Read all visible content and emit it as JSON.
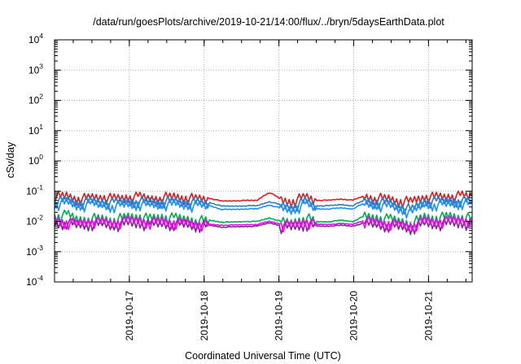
{
  "chart_data": {
    "type": "line",
    "title": "/data/run/goesPlots/archive/2019-10-21/14:00/flux/../bryn/5daysEarthData.plot",
    "xlabel": "Coordinated Universal Time (UTC)",
    "ylabel": "cSv/day",
    "y_scale": "log",
    "ylim": [
      0.0001,
      10000
    ],
    "y_ticks": [
      {
        "base": "10",
        "exp": "4",
        "value": 10000
      },
      {
        "base": "10",
        "exp": "3",
        "value": 1000
      },
      {
        "base": "10",
        "exp": "2",
        "value": 100
      },
      {
        "base": "10",
        "exp": "1",
        "value": 10
      },
      {
        "base": "10",
        "exp": "0",
        "value": 1
      },
      {
        "base": "10",
        "exp": "-1",
        "value": 0.1
      },
      {
        "base": "10",
        "exp": "-2",
        "value": 0.01
      },
      {
        "base": "10",
        "exp": "-3",
        "value": 0.001
      },
      {
        "base": "10",
        "exp": "-4",
        "value": 0.0001
      }
    ],
    "xlim": [
      "2019-10-16 00:00",
      "2019-10-21 14:00"
    ],
    "x_ticks": [
      "2019-10-17",
      "2019-10-18",
      "2019-10-19",
      "2019-10-20",
      "2019-10-21"
    ],
    "grid": true,
    "series": [
      {
        "color": "#e31a1c",
        "values": [
          0.07,
          0.075,
          0.06,
          0.065,
          0.07,
          0.06,
          0.065,
          0.07,
          0.06,
          0.068,
          0.07,
          0.065,
          0.06,
          0.058,
          0.047,
          0.048,
          0.049,
          0.05,
          0.09,
          0.052,
          0.05,
          0.07,
          0.05,
          0.05,
          0.055,
          0.05,
          0.07,
          0.065,
          0.06,
          0.05,
          0.05,
          0.07,
          0.068,
          0.07,
          0.075,
          0.07
        ]
      },
      {
        "color": "#2c7fb8",
        "values": [
          0.05,
          0.055,
          0.045,
          0.05,
          0.048,
          0.045,
          0.05,
          0.052,
          0.047,
          0.05,
          0.05,
          0.048,
          0.045,
          0.042,
          0.032,
          0.032,
          0.033,
          0.033,
          0.045,
          0.035,
          0.034,
          0.05,
          0.033,
          0.033,
          0.036,
          0.033,
          0.05,
          0.048,
          0.045,
          0.035,
          0.026,
          0.05,
          0.05,
          0.052,
          0.055,
          0.05
        ]
      },
      {
        "color": "#1e90ff",
        "values": [
          0.04,
          0.045,
          0.035,
          0.04,
          0.038,
          0.035,
          0.04,
          0.042,
          0.037,
          0.04,
          0.04,
          0.038,
          0.035,
          0.033,
          0.025,
          0.025,
          0.026,
          0.026,
          0.035,
          0.027,
          0.026,
          0.04,
          0.026,
          0.026,
          0.028,
          0.026,
          0.04,
          0.038,
          0.035,
          0.027,
          0.02,
          0.04,
          0.04,
          0.042,
          0.045,
          0.04
        ]
      },
      {
        "color": "#00b050",
        "values": [
          0.015,
          0.018,
          0.012,
          0.014,
          0.013,
          0.012,
          0.015,
          0.016,
          0.013,
          0.015,
          0.014,
          0.013,
          0.012,
          0.011,
          0.0095,
          0.0095,
          0.01,
          0.01,
          0.013,
          0.01,
          0.0098,
          0.015,
          0.0098,
          0.0098,
          0.011,
          0.0099,
          0.015,
          0.014,
          0.013,
          0.011,
          0.0095,
          0.015,
          0.014,
          0.016,
          0.015,
          0.014
        ]
      },
      {
        "color": "#7b2d8e",
        "values": [
          0.009,
          0.01,
          0.008,
          0.009,
          0.0085,
          0.008,
          0.009,
          0.0095,
          0.0085,
          0.009,
          0.009,
          0.0085,
          0.008,
          0.0075,
          0.0065,
          0.0066,
          0.0068,
          0.007,
          0.009,
          0.0072,
          0.007,
          0.009,
          0.007,
          0.007,
          0.0075,
          0.007,
          0.009,
          0.0085,
          0.008,
          0.0072,
          0.0066,
          0.009,
          0.0088,
          0.0092,
          0.0095,
          0.009
        ]
      },
      {
        "color": "#ff00ff",
        "values": [
          0.012,
          0.01,
          0.009,
          0.011,
          0.01,
          0.0095,
          0.011,
          0.012,
          0.01,
          0.011,
          0.01,
          0.0095,
          0.009,
          0.008,
          0.0075,
          0.0076,
          0.0078,
          0.008,
          0.01,
          0.0082,
          0.008,
          0.011,
          0.008,
          0.008,
          0.0085,
          0.008,
          0.011,
          0.01,
          0.0095,
          0.0082,
          0.0076,
          0.011,
          0.0105,
          0.011,
          0.012,
          0.011
        ]
      }
    ]
  }
}
